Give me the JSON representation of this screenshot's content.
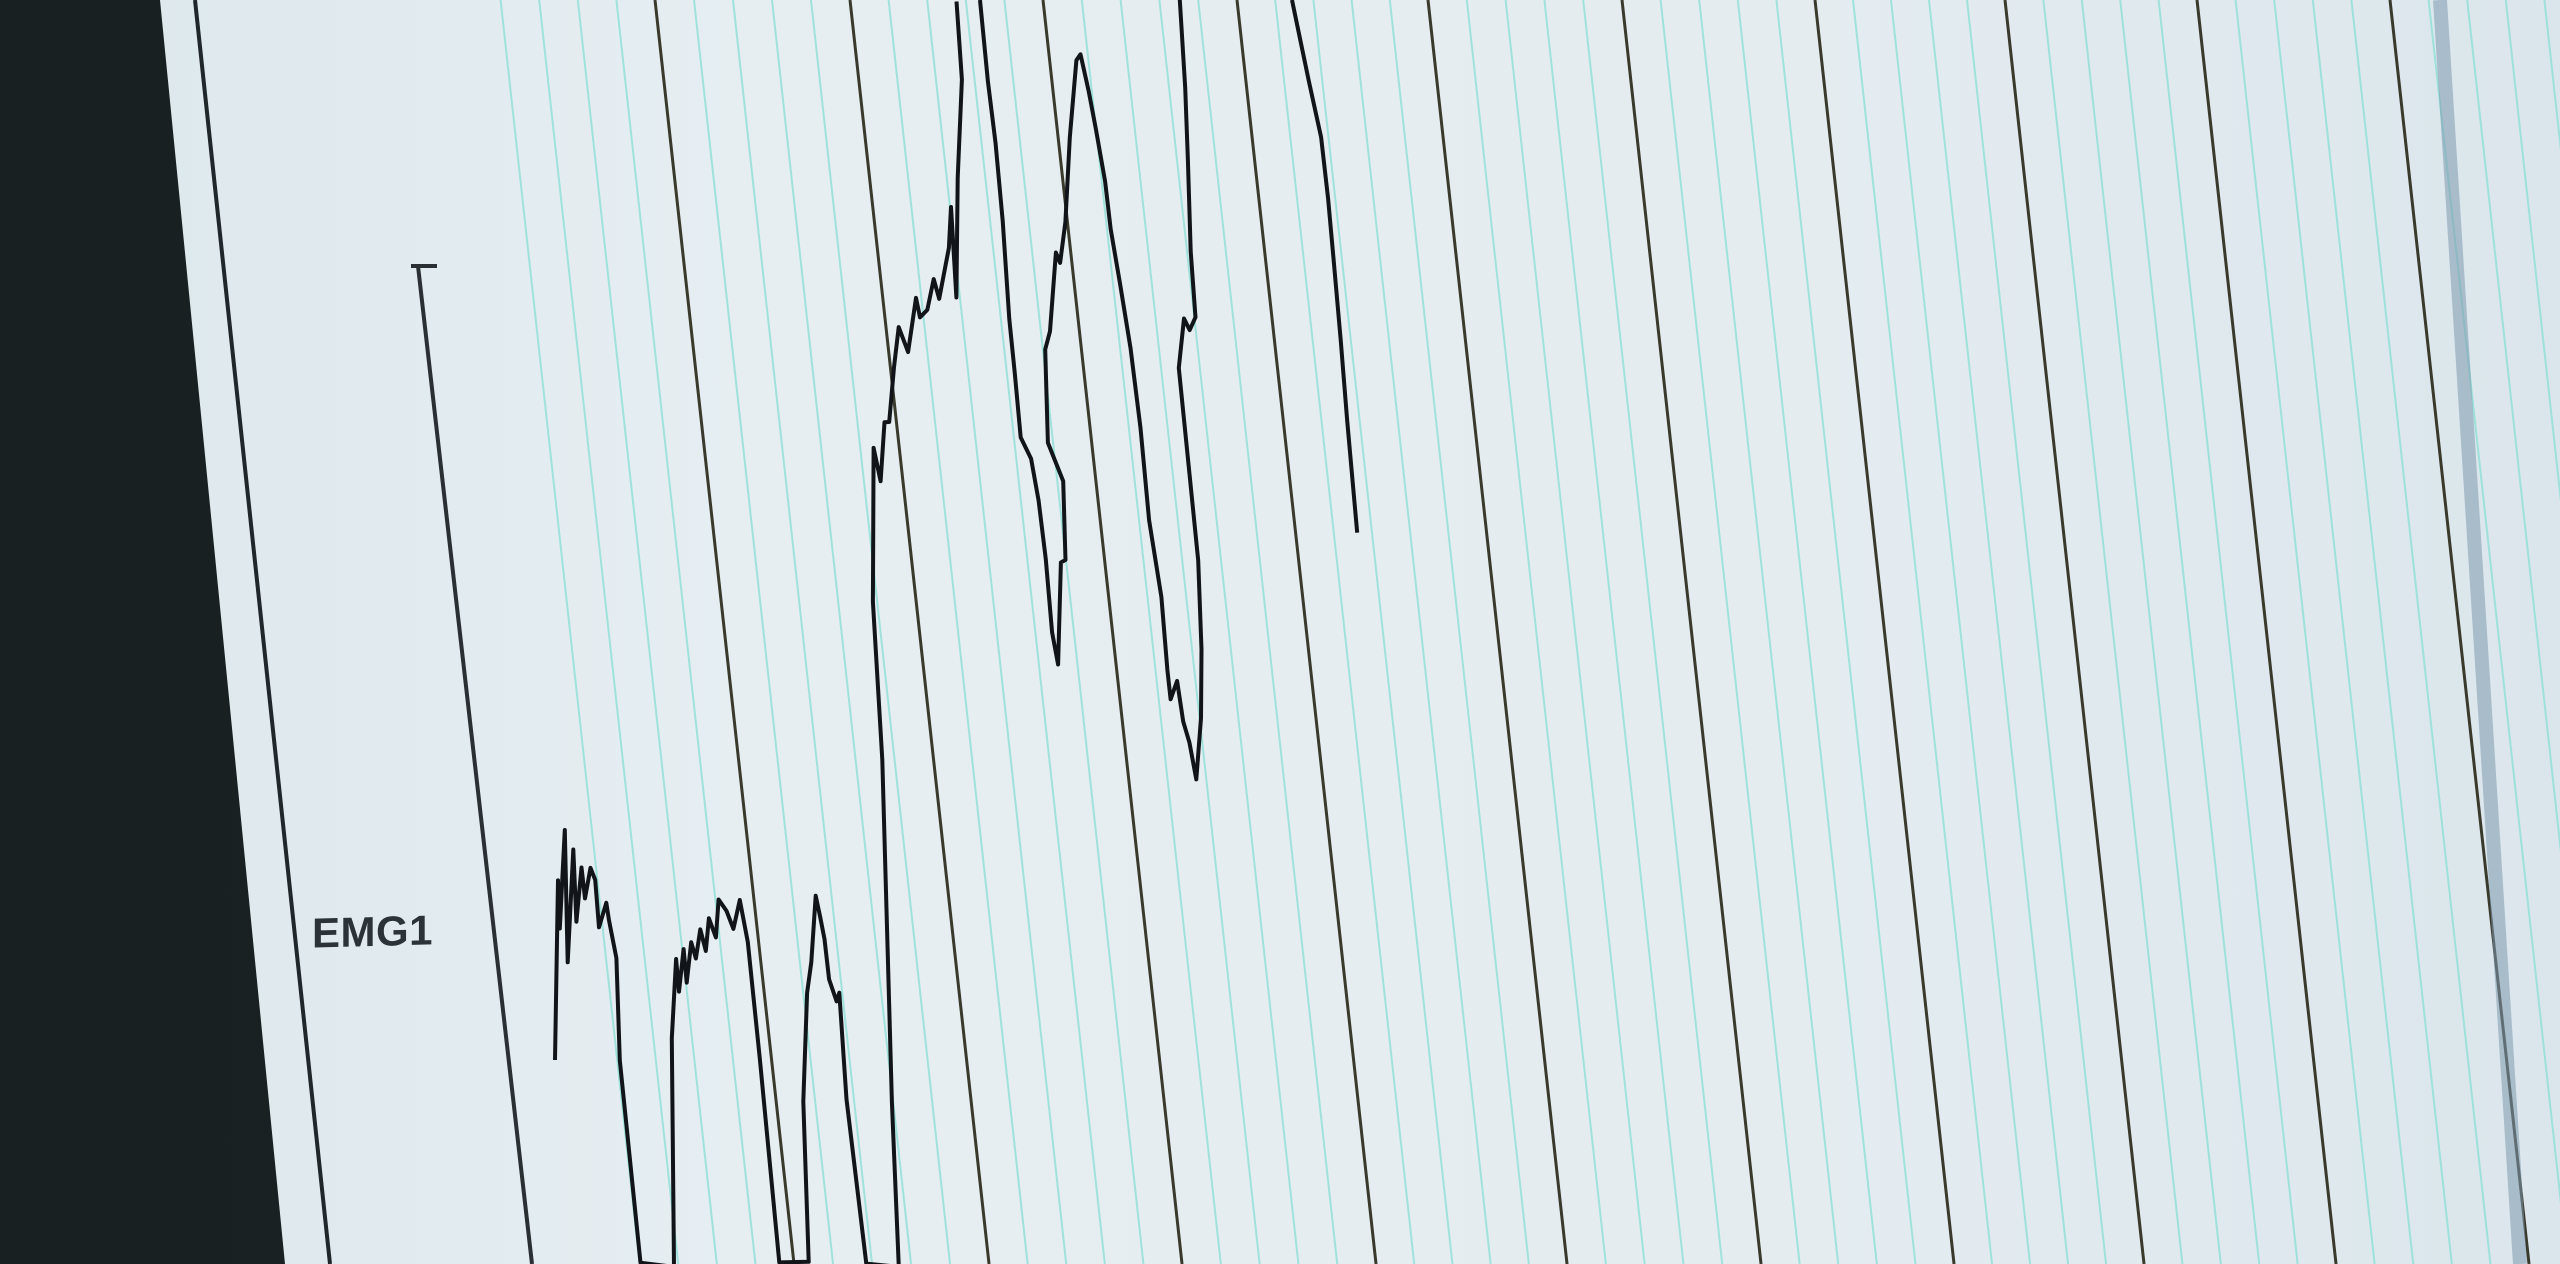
{
  "channel": {
    "label": "EMG1"
  },
  "colors": {
    "background": "#e4ecf0",
    "minor_grid": "#8fe0d6",
    "major_grid": "#3a3a2c",
    "trace": "#111418",
    "frame": "#20272b",
    "bezel": "#1b2224"
  },
  "grid": {
    "minor_lines_per_major": 5,
    "major_divisions_visible": 10
  }
}
